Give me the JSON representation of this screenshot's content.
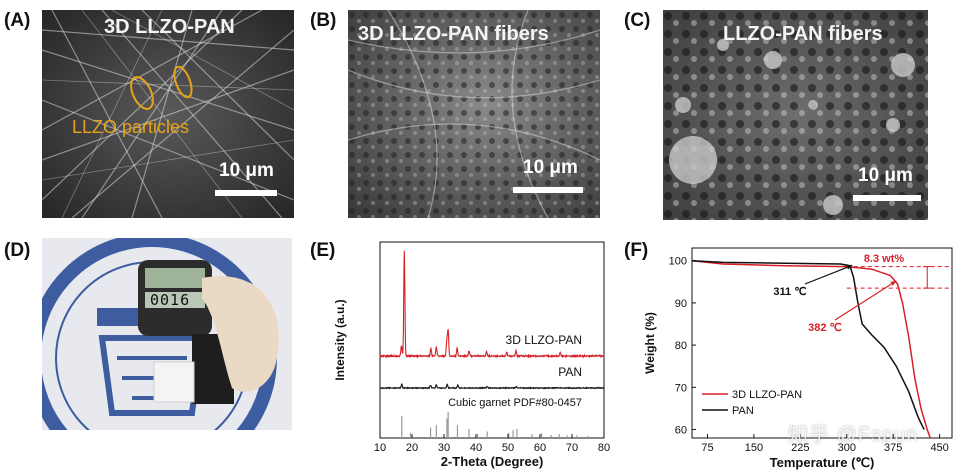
{
  "panels": {
    "a": {
      "letter": "(A)",
      "title": "3D LLZO-PAN",
      "annotation": "LLZO particles",
      "scale": "10 μm"
    },
    "b": {
      "letter": "(B)",
      "title": "3D LLZO-PAN fibers",
      "scale": "10 μm"
    },
    "c": {
      "letter": "(C)",
      "title": "LLZO-PAN fibers",
      "scale": "10 μm"
    },
    "d": {
      "letter": "(D)",
      "gauge_reading": "0016"
    },
    "e": {
      "letter": "(E)"
    },
    "f": {
      "letter": "(F)"
    }
  },
  "colors": {
    "annotation_orange": "#e8a31a",
    "pan_black": "#111111",
    "llzo_red": "#d61f26",
    "reference_gray": "#9a9a9a"
  },
  "watermark": "知乎 @Fspun",
  "chart_data": [
    {
      "type": "line",
      "panel": "E",
      "xlabel": "2-Theta (Degree)",
      "ylabel": "Intensity (a.u.)",
      "xlim": [
        10,
        80
      ],
      "xticks": [
        "10",
        "20",
        "30",
        "40",
        "50",
        "60",
        "70",
        "80"
      ],
      "series": [
        {
          "name": "3D LLZO-PAN",
          "color": "#d61f26",
          "peaks": [
            [
              16.7,
              0.1
            ],
            [
              17.6,
              1.0
            ],
            [
              25.9,
              0.07
            ],
            [
              27.6,
              0.09
            ],
            [
              30.9,
              0.16
            ],
            [
              31.3,
              0.24
            ],
            [
              34.1,
              0.08
            ],
            [
              37.8,
              0.05
            ],
            [
              43.3,
              0.04
            ],
            [
              49.6,
              0.04
            ],
            [
              52.5,
              0.05
            ],
            [
              66.3,
              0.03
            ]
          ]
        },
        {
          "name": "PAN",
          "color": "#111111",
          "peaks": [
            [
              16.8,
              0.35
            ],
            [
              25.8,
              0.25
            ],
            [
              27.6,
              0.3
            ],
            [
              31.0,
              0.3
            ],
            [
              34.3,
              0.25
            ],
            [
              43.5,
              0.12
            ],
            [
              52.6,
              0.1
            ]
          ]
        },
        {
          "name": "Cubic garnet PDF#80-0457",
          "color": "#9a9a9a",
          "peaks": [
            [
              16.8,
              0.85
            ],
            [
              19.5,
              0.2
            ],
            [
              25.8,
              0.4
            ],
            [
              27.6,
              0.5
            ],
            [
              30.9,
              0.75
            ],
            [
              31.3,
              1.0
            ],
            [
              34.2,
              0.5
            ],
            [
              37.8,
              0.35
            ],
            [
              40.5,
              0.15
            ],
            [
              43.5,
              0.25
            ],
            [
              50.2,
              0.2
            ],
            [
              51.6,
              0.3
            ],
            [
              52.8,
              0.35
            ],
            [
              57.5,
              0.15
            ],
            [
              60.5,
              0.18
            ],
            [
              63.5,
              0.12
            ],
            [
              66.0,
              0.15
            ],
            [
              68.5,
              0.1
            ],
            [
              71.5,
              0.1
            ],
            [
              75.0,
              0.08
            ]
          ]
        }
      ]
    },
    {
      "type": "line",
      "panel": "F",
      "xlabel": "Temperature (℃)",
      "ylabel": "Weight (%)",
      "xlim": [
        50,
        470
      ],
      "ylim": [
        58,
        103
      ],
      "xticks": [
        75,
        150,
        225,
        300,
        375,
        450
      ],
      "yticks": [
        60,
        70,
        80,
        90,
        100
      ],
      "legend_position": "bottom-left",
      "series": [
        {
          "name": "3D LLZO-PAN",
          "color": "#d61f26",
          "x": [
            50,
            100,
            200,
            300,
            340,
            370,
            382,
            390,
            400,
            410,
            420,
            430,
            435
          ],
          "y": [
            100,
            99.2,
            98.8,
            98.6,
            98.0,
            96.5,
            94.5,
            90,
            82,
            72,
            65,
            60,
            58
          ]
        },
        {
          "name": "PAN",
          "color": "#111111",
          "x": [
            50,
            100,
            200,
            290,
            305,
            311,
            318,
            325,
            340,
            360,
            380,
            400,
            415,
            425
          ],
          "y": [
            100,
            99.6,
            99.4,
            99.2,
            98.8,
            96.0,
            90,
            85,
            82.5,
            79.5,
            75,
            69,
            63,
            60
          ]
        }
      ],
      "annotations": [
        {
          "text": "8.3 wt%",
          "color": "#d61f26"
        },
        {
          "text": "311 ℃",
          "color": "#111111"
        },
        {
          "text": "382 ℃",
          "color": "#d61f26"
        }
      ]
    }
  ]
}
